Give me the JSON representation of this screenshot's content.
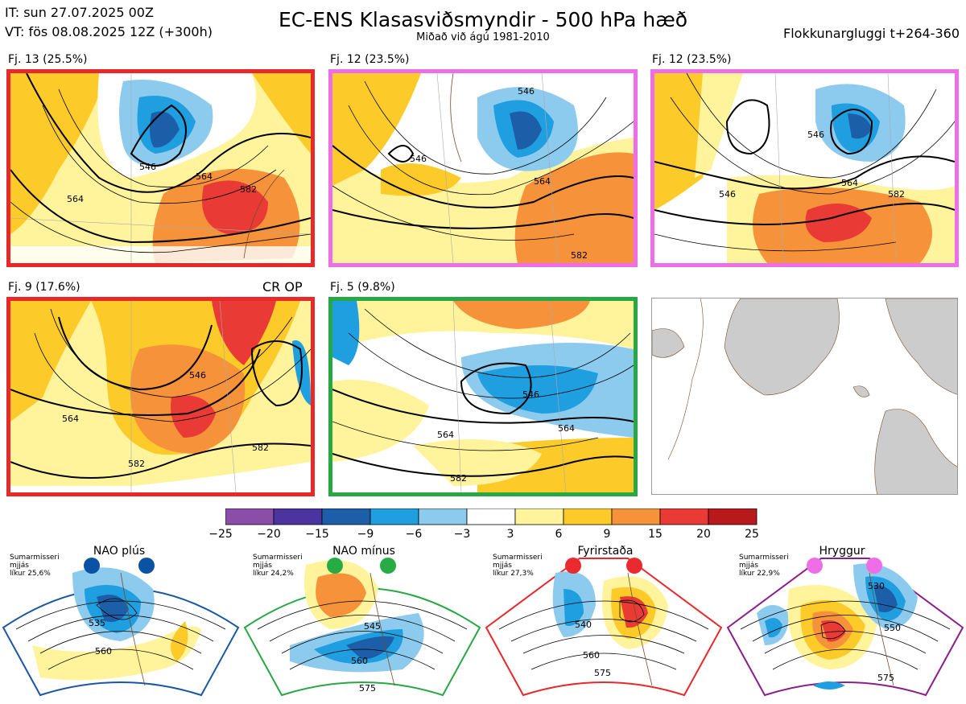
{
  "header": {
    "init_time": "IT: sun 27.07.2025 00Z",
    "valid_time": "VT: fös 08.08.2025 12Z  (+300h)",
    "title": "EC-ENS Klasasviðsmyndir - 500 hPa hæð",
    "subtitle": "Miðað við ágú 1981-2010",
    "window": "Flokkunargluggi t+264-360"
  },
  "panels": [
    {
      "label": "Fj. 13 (25.5%)",
      "border": "#e8282b",
      "contours": [
        "546",
        "564",
        "582",
        "564"
      ]
    },
    {
      "label": "Fj. 12 (23.5%)",
      "border": "#ee6ee8",
      "contours": [
        "546",
        "546",
        "564",
        "582"
      ]
    },
    {
      "label": "Fj. 12 (23.5%)",
      "border": "#ee6ee8",
      "contours": [
        "546",
        "564",
        "582",
        "546"
      ]
    },
    {
      "label": "Fj. 9 (17.6%)",
      "border": "#e8282b",
      "contours": [
        "564",
        "582",
        "546",
        "582"
      ]
    },
    {
      "label": "Fj. 5 (9.8%)",
      "border": "#27a844",
      "contours": [
        "546",
        "564",
        "582",
        "564"
      ]
    }
  ],
  "cr_op": "CR OP",
  "colorbar": {
    "colors": [
      "#8b4ea8",
      "#4b34a0",
      "#1c5fa8",
      "#1f9ee0",
      "#8ccbee",
      "#ffffff",
      "#fff39b",
      "#fccb2a",
      "#f6923a",
      "#ea3a36",
      "#b81a1c"
    ],
    "ticks": [
      "−25",
      "−20",
      "−15",
      "−9",
      "−6",
      "−3",
      "3",
      "6",
      "9",
      "15",
      "20",
      "25"
    ]
  },
  "regimes": [
    {
      "title": "NAO plús",
      "note": [
        "Sumarmisseri",
        "mjjás",
        "líkur 25,6%"
      ],
      "color": "#1a56a4",
      "dot": "#0a52a3",
      "contours": [
        "535",
        "560"
      ]
    },
    {
      "title": "NAO mínus",
      "note": [
        "Sumarmisseri",
        "mjjás",
        "líkur 24,2%"
      ],
      "color": "#27a844",
      "dot": "#27ab44",
      "contours": [
        "545",
        "560",
        "575"
      ]
    },
    {
      "title": "Fyrirstaða",
      "note": [
        "Sumarmisseri",
        "mjjás",
        "líkur 27,3%"
      ],
      "color": "#e8282b",
      "dot": "#ea2a2e",
      "contours": [
        "540",
        "560",
        "575"
      ]
    },
    {
      "title": "Hryggur",
      "note": [
        "Sumarmisseri",
        "mjjás",
        "líkur 22,9%"
      ],
      "color": "#8b1f8a",
      "dot": "#ee6ee8",
      "contours": [
        "530",
        "550",
        "575"
      ]
    }
  ]
}
